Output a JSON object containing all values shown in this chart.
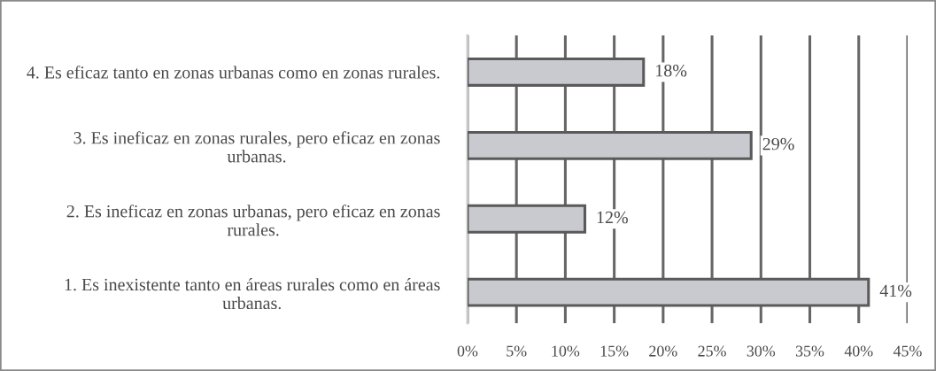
{
  "chart_data": {
    "type": "bar",
    "orientation": "horizontal",
    "categories": [
      "4. Es eficaz tanto en zonas urbanas como en zonas rurales.",
      "3. Es ineficaz en zonas rurales, pero eficaz en zonas urbanas.",
      "2. Es ineficaz en zonas urbanas, pero eficaz en zonas rurales.",
      "1. Es inexistente tanto en áreas rurales como en áreas urbanas."
    ],
    "values": [
      18,
      29,
      12,
      41
    ],
    "value_labels": [
      "18%",
      "29%",
      "12%",
      "41%"
    ],
    "color": "#c9cacf",
    "xlim": [
      0,
      45
    ],
    "xticks": [
      {
        "value": 0,
        "label": "0%"
      },
      {
        "value": 5,
        "label": "5%"
      },
      {
        "value": 10,
        "label": "10%"
      },
      {
        "value": 15,
        "label": "15%"
      },
      {
        "value": 20,
        "label": "20%"
      },
      {
        "value": 25,
        "label": "25%"
      },
      {
        "value": 30,
        "label": "30%"
      },
      {
        "value": 35,
        "label": "35%"
      },
      {
        "value": 40,
        "label": "40%"
      },
      {
        "value": 45,
        "label": "45%"
      }
    ],
    "grid": "x"
  }
}
